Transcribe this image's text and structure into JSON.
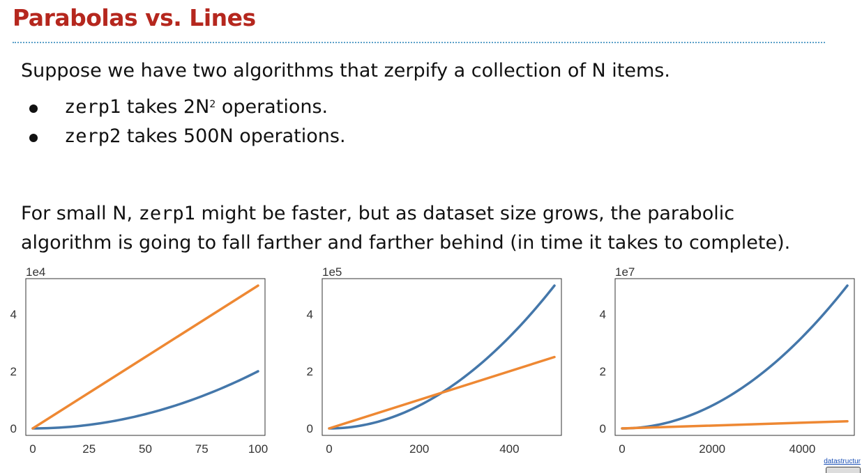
{
  "title": "Parabolas vs. Lines",
  "intro": "Suppose we have two algorithms that zerpify a collection of N items.",
  "bullets": [
    {
      "code": "zerp1",
      "pre": " takes 2N",
      "sup": "2",
      "post": " operations."
    },
    {
      "code": "zerp2",
      "pre": " takes 500N operations.",
      "sup": "",
      "post": ""
    }
  ],
  "para": {
    "line1_pre": "For small N, ",
    "line1_code": "zerp1",
    "line1_post": " might be faster, but as dataset size grows, the parabolic",
    "line2": "algorithm is going to fall farther and farther behind (in time it takes to complete)."
  },
  "footer": {
    "link": "datastructur"
  },
  "colors": {
    "quadratic": "#4477aa",
    "linear": "#ee8833",
    "title": "#b5271e"
  },
  "chart_data": [
    {
      "type": "line",
      "multiplier": "1e4",
      "xlim": [
        0,
        100
      ],
      "ylim": [
        0,
        5
      ],
      "xticks": [
        0,
        25,
        50,
        75,
        100
      ],
      "yticks": [
        0,
        2,
        4
      ],
      "series": [
        {
          "formula": "2N^2",
          "color": "#4477aa",
          "x": [
            0,
            25,
            50,
            75,
            100
          ],
          "y": [
            0,
            0.125,
            0.5,
            1.125,
            2.0
          ]
        },
        {
          "formula": "500N",
          "color": "#ee8833",
          "x": [
            0,
            25,
            50,
            75,
            100
          ],
          "y": [
            0,
            1.25,
            2.5,
            3.75,
            5.0
          ]
        }
      ]
    },
    {
      "type": "line",
      "multiplier": "1e5",
      "xlim": [
        0,
        500
      ],
      "ylim": [
        0,
        5
      ],
      "xticks": [
        0,
        200,
        400
      ],
      "yticks": [
        0,
        2,
        4
      ],
      "series": [
        {
          "formula": "2N^2",
          "color": "#4477aa",
          "x": [
            0,
            100,
            200,
            300,
            400,
            500
          ],
          "y": [
            0,
            0.2,
            0.8,
            1.8,
            3.2,
            5.0
          ]
        },
        {
          "formula": "500N",
          "color": "#ee8833",
          "x": [
            0,
            500
          ],
          "y": [
            0,
            2.5
          ]
        }
      ]
    },
    {
      "type": "line",
      "multiplier": "1e7",
      "xlim": [
        0,
        5000
      ],
      "ylim": [
        0,
        5
      ],
      "xticks": [
        0,
        2000,
        4000
      ],
      "yticks": [
        0,
        2,
        4
      ],
      "series": [
        {
          "formula": "2N^2",
          "color": "#4477aa",
          "x": [
            0,
            1000,
            2000,
            3000,
            4000,
            5000
          ],
          "y": [
            0,
            0.2,
            0.8,
            1.8,
            3.2,
            5.0
          ]
        },
        {
          "formula": "500N",
          "color": "#ee8833",
          "x": [
            0,
            5000
          ],
          "y": [
            0,
            0.25
          ]
        }
      ]
    }
  ]
}
